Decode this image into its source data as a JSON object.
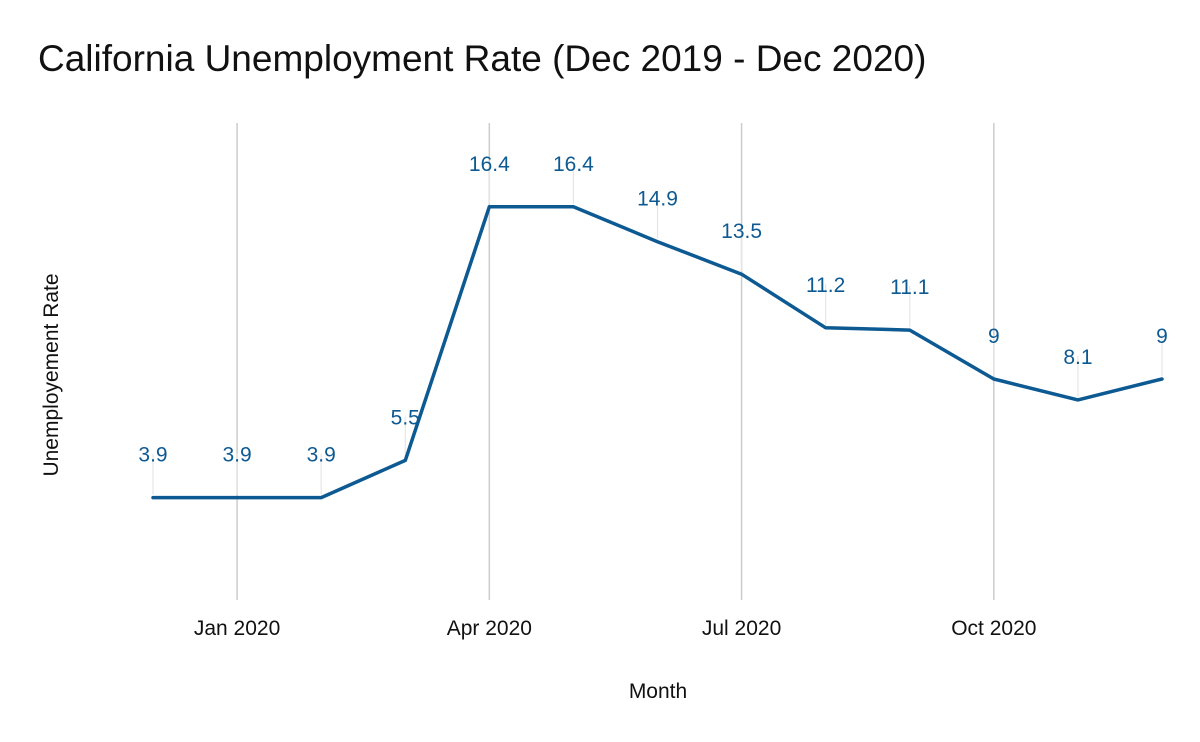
{
  "chart_data": {
    "type": "line",
    "title": "California Unemployment Rate (Dec 2019 - Dec 2020)",
    "xlabel": "Month",
    "ylabel": "Unemployement Rate",
    "x": [
      "2019-12",
      "2020-01",
      "2020-02",
      "2020-03",
      "2020-04",
      "2020-05",
      "2020-06",
      "2020-07",
      "2020-08",
      "2020-09",
      "2020-10",
      "2020-11",
      "2020-12"
    ],
    "values": [
      3.9,
      3.9,
      3.9,
      5.5,
      16.4,
      16.4,
      14.9,
      13.5,
      11.2,
      11.1,
      9,
      8.1,
      9
    ],
    "x_ticks": [
      {
        "x": "2020-01",
        "label": "Jan 2020"
      },
      {
        "x": "2020-04",
        "label": "Apr 2020"
      },
      {
        "x": "2020-07",
        "label": "Jul 2020"
      },
      {
        "x": "2020-10",
        "label": "Oct 2020"
      }
    ],
    "y_axis_tick_labels_shown": false,
    "ylim": [
      -0.5,
      20.0
    ],
    "grid": "vertical",
    "data_labels": true,
    "legend": "none",
    "line_color": "#0d5a93",
    "grid_color": "#cccccc"
  }
}
